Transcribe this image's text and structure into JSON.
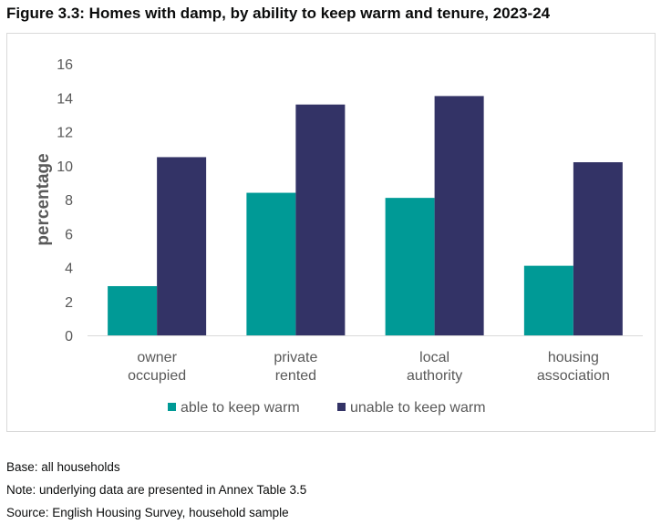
{
  "figure": {
    "title": "Figure 3.3: Homes with damp, by ability to keep warm and tenure, 2023-24"
  },
  "notes": {
    "base": "Base: all households",
    "note": "Note: underlying data are presented in Annex Table 3.5",
    "source": "Source: English Housing Survey, household sample"
  },
  "colors": {
    "able": "#009a96",
    "unable": "#333366",
    "tick_text": "#595959",
    "axis_line": "#d9d9d9"
  },
  "chart_data": {
    "type": "bar",
    "title": "",
    "xlabel": "",
    "ylabel": "percentage",
    "ylim": [
      0,
      16
    ],
    "yticks": [
      0,
      2,
      4,
      6,
      8,
      10,
      12,
      14,
      16
    ],
    "grid": false,
    "legend_position": "bottom",
    "categories": [
      [
        "owner",
        "occupied"
      ],
      [
        "private",
        "rented"
      ],
      [
        "local",
        "authority"
      ],
      [
        "housing",
        "association"
      ]
    ],
    "series": [
      {
        "name": "able to keep warm",
        "values": [
          2.9,
          8.4,
          8.1,
          4.1
        ]
      },
      {
        "name": "unable to keep warm",
        "values": [
          10.5,
          13.6,
          14.1,
          10.2
        ]
      }
    ]
  }
}
